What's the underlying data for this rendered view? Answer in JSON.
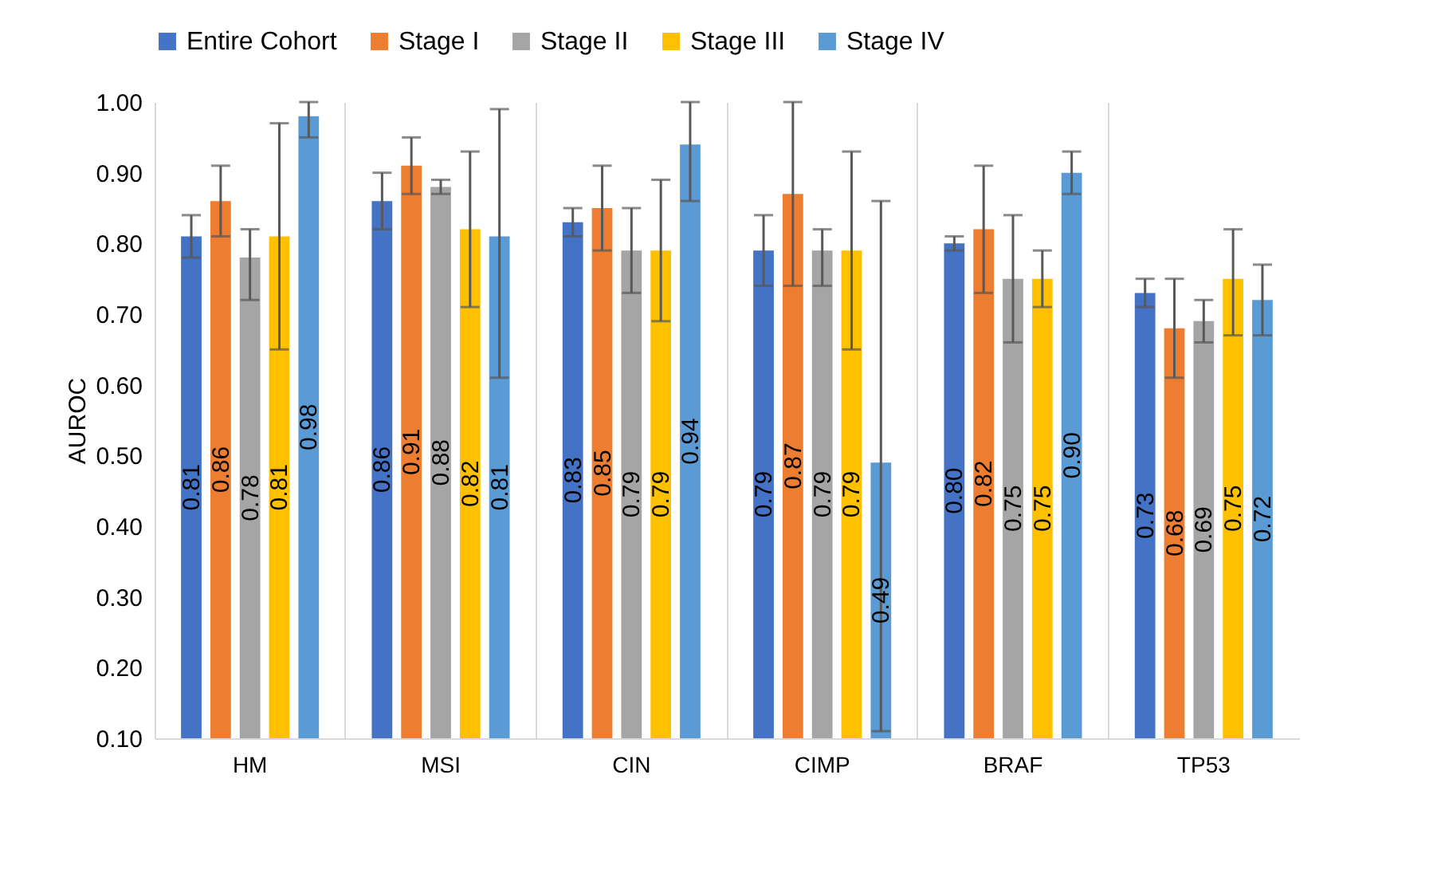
{
  "chart_data": {
    "type": "bar",
    "ylabel": "AUROC",
    "categories": [
      "HM",
      "MSI",
      "CIN",
      "CIMP",
      "BRAF",
      "TP53"
    ],
    "series": [
      {
        "name": "Entire Cohort",
        "color": "#4472c4",
        "values": [
          0.81,
          0.86,
          0.83,
          0.79,
          0.8,
          0.73
        ],
        "value_labels": [
          "0.81",
          "0.86",
          "0.83",
          "0.79",
          "0.80",
          "0.73"
        ],
        "errors": [
          [
            0.78,
            0.84
          ],
          [
            0.82,
            0.9
          ],
          [
            0.81,
            0.85
          ],
          [
            0.74,
            0.84
          ],
          [
            0.79,
            0.81
          ],
          [
            0.71,
            0.75
          ]
        ]
      },
      {
        "name": "Stage I",
        "color": "#ed7d31",
        "values": [
          0.86,
          0.91,
          0.85,
          0.87,
          0.82,
          0.68
        ],
        "value_labels": [
          "0.86",
          "0.91",
          "0.85",
          "0.87",
          "0.82",
          "0.68"
        ],
        "errors": [
          [
            0.81,
            0.91
          ],
          [
            0.87,
            0.95
          ],
          [
            0.79,
            0.91
          ],
          [
            0.74,
            1.0
          ],
          [
            0.73,
            0.91
          ],
          [
            0.61,
            0.75
          ]
        ]
      },
      {
        "name": "Stage II",
        "color": "#a5a5a5",
        "values": [
          0.78,
          0.88,
          0.79,
          0.79,
          0.75,
          0.69
        ],
        "value_labels": [
          "0.78",
          "0.88",
          "0.79",
          "0.79",
          "0.75",
          "0.69"
        ],
        "errors": [
          [
            0.72,
            0.82
          ],
          [
            0.87,
            0.89
          ],
          [
            0.73,
            0.85
          ],
          [
            0.74,
            0.82
          ],
          [
            0.66,
            0.84
          ],
          [
            0.66,
            0.72
          ]
        ]
      },
      {
        "name": "Stage III",
        "color": "#ffc000",
        "values": [
          0.81,
          0.82,
          0.79,
          0.79,
          0.75,
          0.75
        ],
        "value_labels": [
          "0.81",
          "0.82",
          "0.79",
          "0.79",
          "0.75",
          "0.75"
        ],
        "errors": [
          [
            0.65,
            0.97
          ],
          [
            0.71,
            0.93
          ],
          [
            0.69,
            0.89
          ],
          [
            0.65,
            0.93
          ],
          [
            0.71,
            0.79
          ],
          [
            0.67,
            0.82
          ]
        ]
      },
      {
        "name": "Stage IV",
        "color": "#5b9bd5",
        "values": [
          0.98,
          0.81,
          0.94,
          0.49,
          0.9,
          0.72
        ],
        "value_labels": [
          "0.98",
          "0.81",
          "0.94",
          "0.49",
          "0.90",
          "0.72"
        ],
        "errors": [
          [
            0.95,
            1.0
          ],
          [
            0.61,
            0.99
          ],
          [
            0.86,
            1.0
          ],
          [
            0.11,
            0.86
          ],
          [
            0.87,
            0.93
          ],
          [
            0.67,
            0.77
          ]
        ]
      }
    ],
    "ylim": [
      0.1,
      1.0
    ],
    "yticks": [
      {
        "value": 0.1,
        "label": "0.10"
      },
      {
        "value": 0.2,
        "label": "0.20"
      },
      {
        "value": 0.3,
        "label": "0.30"
      },
      {
        "value": 0.4,
        "label": "0.40"
      },
      {
        "value": 0.5,
        "label": "0.50"
      },
      {
        "value": 0.6,
        "label": "0.60"
      },
      {
        "value": 0.7,
        "label": "0.70"
      },
      {
        "value": 0.8,
        "label": "0.80"
      },
      {
        "value": 0.9,
        "label": "0.90"
      },
      {
        "value": 1.0,
        "label": "1.00"
      }
    ],
    "grid": "x",
    "legend": "top"
  }
}
